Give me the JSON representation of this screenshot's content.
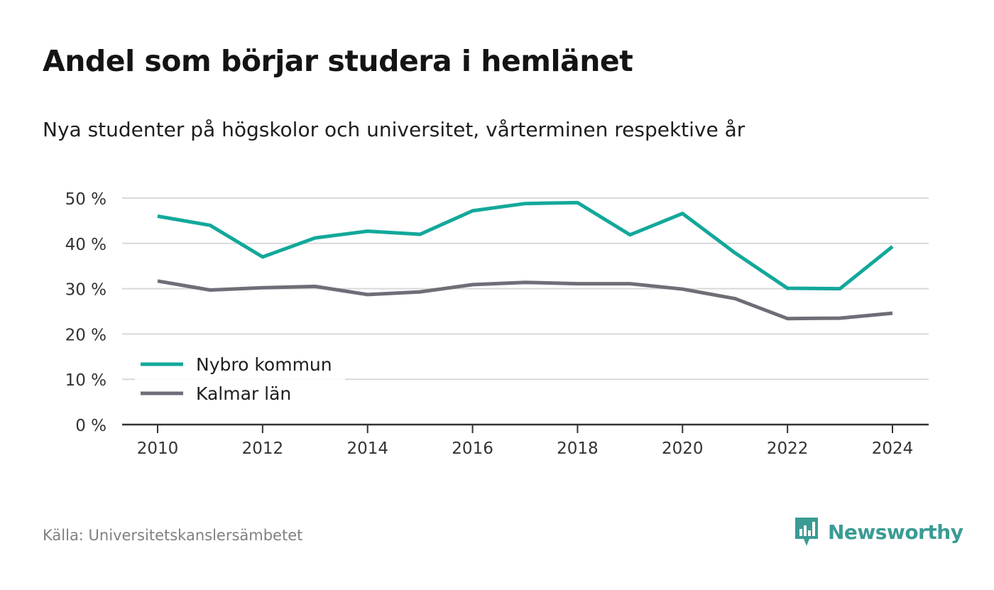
{
  "header": {
    "title": "Andel som börjar studera i hemlänet",
    "subtitle": "Nya studenter på högskolor och universitet, vårterminen respektive år"
  },
  "footer": {
    "source": "Källa: Universitetskanslersämbetet",
    "brand": "Newsworthy",
    "brand_icon": "newsworthy-logo-icon"
  },
  "colors": {
    "nybro": "#13a89a",
    "kalmar": "#6e6e78",
    "grid": "#d9d9d9",
    "axis": "#333333",
    "brand": "#3a9b94"
  },
  "chart_data": {
    "type": "line",
    "title": "Andel som börjar studera i hemlänet",
    "subtitle": "Nya studenter på högskolor och universitet, vårterminen respektive år",
    "xlabel": "",
    "ylabel": "",
    "x": [
      2010,
      2011,
      2012,
      2013,
      2014,
      2015,
      2016,
      2017,
      2018,
      2019,
      2020,
      2021,
      2022,
      2023,
      2024
    ],
    "x_ticks": [
      "2010",
      "2012",
      "2014",
      "2016",
      "2018",
      "2020",
      "2022",
      "2024"
    ],
    "y_ticks": [
      "0 %",
      "10 %",
      "20 %",
      "30 %",
      "40 %",
      "50 %"
    ],
    "ylim": [
      0,
      50
    ],
    "grid": true,
    "legend_position": "bottom-left",
    "series": [
      {
        "name": "Nybro kommun",
        "color": "#13a89a",
        "values": [
          46.0,
          44.0,
          37.0,
          41.2,
          42.7,
          42.0,
          47.2,
          48.8,
          49.0,
          41.9,
          46.6,
          37.9,
          30.1,
          30.0,
          39.3
        ]
      },
      {
        "name": "Kalmar län",
        "color": "#6e6e78",
        "values": [
          31.7,
          29.7,
          30.2,
          30.5,
          28.7,
          29.3,
          30.9,
          31.4,
          31.1,
          31.1,
          29.9,
          27.8,
          23.4,
          23.5,
          24.6
        ]
      }
    ]
  }
}
